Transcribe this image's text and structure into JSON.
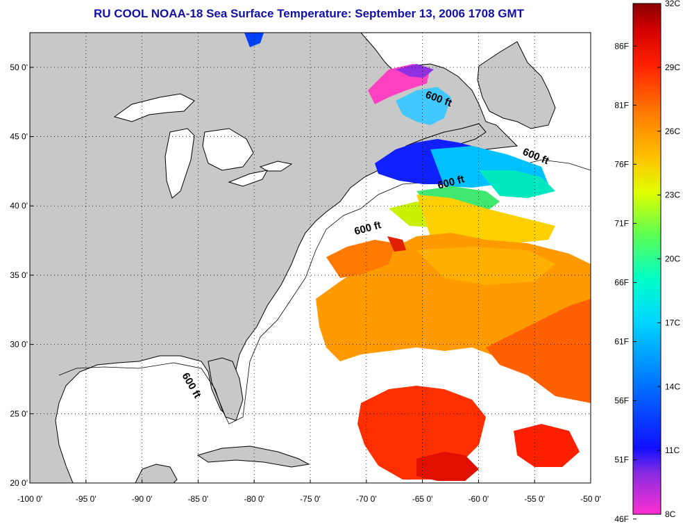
{
  "title": "RU COOL  NOAA-18  Sea Surface Temperature:  September 13, 2006 1708 GMT",
  "map": {
    "lon_range": [
      -100,
      -50
    ],
    "lat_range": [
      20,
      52.5
    ],
    "lon_ticks": [
      "-100 0'",
      "-95 0'",
      "-90 0'",
      "-85 0'",
      "-80 0'",
      "-75 0'",
      "-70 0'",
      "-65 0'",
      "-60 0'",
      "-55 0'",
      "-50 0'"
    ],
    "lat_ticks": [
      "50 0'",
      "45 0'",
      "40 0'",
      "35 0'",
      "30 0'",
      "25 0'",
      "20 0'"
    ],
    "grid": "dotted",
    "land_color": "#c8c8c8",
    "contour_labels": [
      "600 ft",
      "600 ft",
      "600 ft",
      "600 ft",
      "600 ft"
    ]
  },
  "colorbar": {
    "f_labels": [
      "86F",
      "81F",
      "76F",
      "71F",
      "66F",
      "61F",
      "56F",
      "51F",
      "46F"
    ],
    "c_labels": [
      "32C",
      "29C",
      "26C",
      "23C",
      "20C",
      "17C",
      "14C",
      "11C",
      "8C"
    ],
    "range_c": [
      8,
      32
    ],
    "colors": [
      "#ff30d0",
      "#8a2be2",
      "#0000ff",
      "#0070ff",
      "#00c0ff",
      "#00ffd0",
      "#40ff60",
      "#c0ff00",
      "#ffe000",
      "#ff9a00",
      "#ff4000",
      "#e00000",
      "#8b0000"
    ]
  }
}
